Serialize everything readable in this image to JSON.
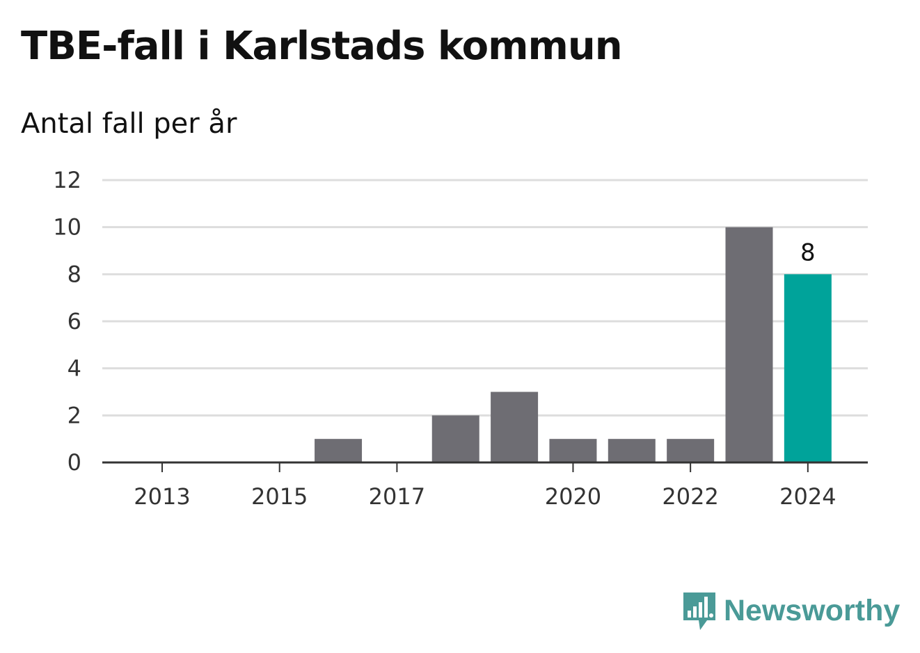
{
  "title": "TBE-fall i Karlstads kommun",
  "subtitle": "Antal fall per år",
  "brand": {
    "name": "Newsworthy",
    "icon": "newsworthy-logo-icon",
    "color": "#4a9a97"
  },
  "colors": {
    "bar": "#6e6d73",
    "highlight": "#00a39a",
    "grid": "#dddddd",
    "axis": "#333333"
  },
  "chart_data": {
    "type": "bar",
    "title": "TBE-fall i Karlstads kommun",
    "subtitle": "Antal fall per år",
    "xlabel": "",
    "ylabel": "",
    "categories": [
      2013,
      2014,
      2015,
      2016,
      2017,
      2018,
      2019,
      2020,
      2021,
      2022,
      2023,
      2024
    ],
    "values": [
      0,
      0,
      0,
      1,
      0,
      2,
      3,
      1,
      1,
      1,
      10,
      8
    ],
    "x_tick_labels": [
      "2013",
      "2015",
      "2017",
      "2020",
      "2022",
      "2024"
    ],
    "y_ticks": [
      0,
      2,
      4,
      6,
      8,
      10,
      12
    ],
    "ylim": [
      0,
      12
    ],
    "grid": true,
    "highlight_category": 2024,
    "data_labels": [
      {
        "category": 2024,
        "text": "8"
      }
    ]
  }
}
